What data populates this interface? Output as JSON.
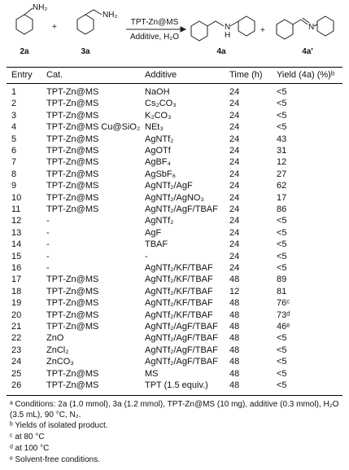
{
  "scheme": {
    "reactant1_group": "NH₂",
    "plus": "+",
    "reactant2_group": "NH₂",
    "conditions_top": "TPT-Zn@MS",
    "conditions_bottom": "Additive,  H₂O",
    "product_n": "N",
    "product_h": "H",
    "plus2": "+",
    "imine_n": "N",
    "labels": [
      "2a",
      "3a",
      "4a",
      "4a'"
    ]
  },
  "table": {
    "headers": [
      "Entry",
      "Cat.",
      "Additive",
      "Time (h)",
      "Yield (4a) (%)ᵇ"
    ],
    "rows": [
      [
        "1",
        "TPT-Zn@MS",
        "NaOH",
        "24",
        "<5"
      ],
      [
        "2",
        "TPT-Zn@MS",
        "Cs₂CO₃",
        "24",
        "<5"
      ],
      [
        "3",
        "TPT-Zn@MS",
        "K₂CO₃",
        "24",
        "<5"
      ],
      [
        "4",
        "TPT-Zn@MS Cu@SiO₂",
        "NEt₃",
        "24",
        "<5"
      ],
      [
        "5",
        "TPT-Zn@MS",
        "AgNTf₂",
        "24",
        "43"
      ],
      [
        "6",
        "TPT-Zn@MS",
        "AgOTf",
        "24",
        "31"
      ],
      [
        "7",
        "TPT-Zn@MS",
        "AgBF₄",
        "24",
        "12"
      ],
      [
        "8",
        "TPT-Zn@MS",
        "AgSbF₆",
        "24",
        "27"
      ],
      [
        "9",
        "TPT-Zn@MS",
        "AgNTf₂/AgF",
        "24",
        "62"
      ],
      [
        "10",
        "TPT-Zn@MS",
        "AgNTf₂/AgNO₃",
        "24",
        "17"
      ],
      [
        "11",
        "TPT-Zn@MS",
        "AgNTf₂/AgF/TBAF",
        "24",
        "86"
      ],
      [
        "12",
        "-",
        "AgNTf₂",
        "24",
        "<5"
      ],
      [
        "13",
        "-",
        "AgF",
        "24",
        "<5"
      ],
      [
        "14",
        "-",
        "TBAF",
        "24",
        "<5"
      ],
      [
        "15",
        "-",
        "-",
        "24",
        "<5"
      ],
      [
        "16",
        "-",
        "AgNTf₂/KF/TBAF",
        "24",
        "<5"
      ],
      [
        "17",
        "TPT-Zn@MS",
        "AgNTf₂/KF/TBAF",
        "48",
        "89"
      ],
      [
        "18",
        "TPT-Zn@MS",
        "AgNTf₂/KF/TBAF",
        "12",
        "81"
      ],
      [
        "19",
        "TPT-Zn@MS",
        "AgNTf₂/KF/TBAF",
        "48",
        "76ᶜ"
      ],
      [
        "20",
        "TPT-Zn@MS",
        "AgNTf₂/KF/TBAF",
        "48",
        "73ᵈ"
      ],
      [
        "21",
        "TPT-Zn@MS",
        "AgNTf₂/AgF/TBAF",
        "48",
        "46ᵉ"
      ],
      [
        "22",
        "ZnO",
        "AgNTf₂/AgF/TBAF",
        "48",
        "<5"
      ],
      [
        "23",
        "ZnCl₂",
        "AgNTf₂/AgF/TBAF",
        "48",
        "<5"
      ],
      [
        "24",
        "ZnCO₃",
        "AgNTf₂/AgF/TBAF",
        "48",
        "<5"
      ],
      [
        "25",
        "TPT-Zn@MS",
        "MS",
        "48",
        "<5"
      ],
      [
        "26",
        "TPT-Zn@MS",
        "TPT (1.5 equiv.)",
        "48",
        "<5"
      ]
    ]
  },
  "footnotes": [
    "ᵃ Conditions: 2a (1.0 mmol), 3a (1.2 mmol), TPT-Zn@MS (10 mg), additive (0.3 mmol), H₂O (3.5 mL), 90 °C, N₂.",
    "ᵇ Yields of isolated product.",
    "ᶜ at 80 °C",
    "ᵈ at 100 °C",
    "ᵉ Solvent-free conditions."
  ]
}
